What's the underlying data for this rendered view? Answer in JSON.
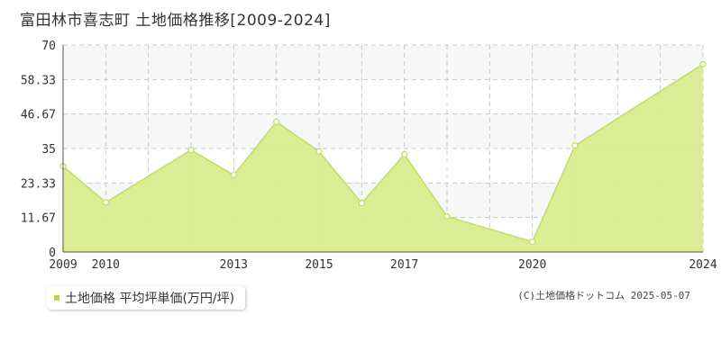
{
  "title": "富田林市喜志町 土地価格推移[2009-2024]",
  "credit": "(C)土地価格ドットコム 2025-05-07",
  "colors": {
    "fill": "#d9eb8e",
    "line": "#bfe05a",
    "point_fill": "#ffffff",
    "grid": "#c8c8c8",
    "band": "#f7f7f7",
    "axis": "#555555",
    "legend_swatch": "#b5d84a"
  },
  "legend": {
    "label": "土地価格 平均坪単価(万円/坪)"
  },
  "chart_data": {
    "type": "area",
    "x": [
      2009,
      2010,
      2012,
      2013,
      2014,
      2015,
      2016,
      2017,
      2018,
      2020,
      2021,
      2024
    ],
    "series": [
      {
        "name": "土地価格 平均坪単価(万円/坪)",
        "values": [
          29,
          16.8,
          34.5,
          26,
          44,
          34,
          16.5,
          33,
          12,
          3.5,
          36,
          63.5
        ]
      }
    ],
    "ylim": [
      0,
      70
    ],
    "yticks": [
      "0",
      "11.67",
      "23.33",
      "35",
      "46.67",
      "58.33",
      "70"
    ],
    "xlim": [
      2009,
      2024
    ],
    "xticks": [
      "2009",
      "2010",
      "2013",
      "2015",
      "2017",
      "2020",
      "2024"
    ],
    "xlabel": "",
    "ylabel": "",
    "grid": true
  }
}
